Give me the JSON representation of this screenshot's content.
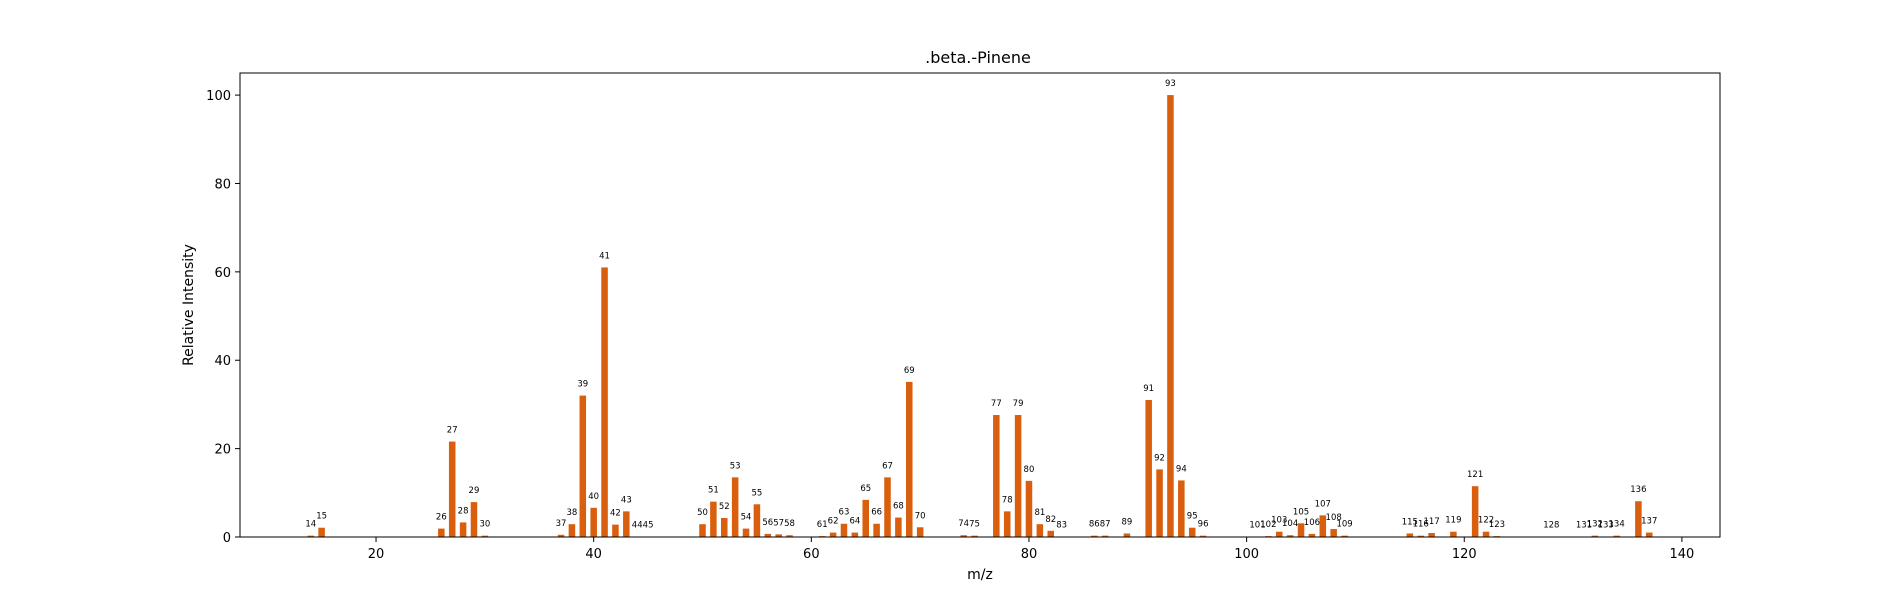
{
  "chart_data": {
    "type": "bar",
    "title": ".beta.-Pinene",
    "xlabel": "m/z",
    "ylabel": "Relative Intensity",
    "xlim": [
      7.5,
      143.5
    ],
    "ylim": [
      0,
      105
    ],
    "xticks": [
      20,
      40,
      60,
      80,
      100,
      120,
      140
    ],
    "yticks": [
      0,
      20,
      40,
      60,
      80,
      100
    ],
    "bar_color": "#d95f0e",
    "grid": false,
    "legend": "none",
    "series": [
      {
        "x": [
          14,
          15,
          26,
          27,
          28,
          29,
          30,
          37,
          38,
          39,
          40,
          41,
          42,
          43,
          44,
          45,
          50,
          51,
          52,
          53,
          54,
          55,
          56,
          57,
          58,
          61,
          62,
          63,
          64,
          65,
          66,
          67,
          68,
          69,
          70,
          74,
          75,
          77,
          78,
          79,
          80,
          81,
          82,
          83,
          86,
          87,
          89,
          91,
          92,
          93,
          94,
          95,
          96,
          101,
          102,
          103,
          104,
          105,
          106,
          107,
          108,
          109,
          115,
          116,
          117,
          119,
          121,
          122,
          123,
          128,
          131,
          132,
          133,
          134,
          136,
          137
        ],
        "values": [
          0.3,
          2.1,
          1.9,
          21.6,
          3.3,
          7.9,
          0.3,
          0.5,
          2.9,
          32.0,
          6.6,
          61.0,
          2.8,
          5.8,
          0.1,
          0.1,
          2.9,
          8.0,
          4.3,
          13.5,
          1.9,
          7.4,
          0.7,
          0.6,
          0.4,
          0.2,
          1.0,
          3.0,
          1.0,
          8.4,
          3.0,
          13.5,
          4.4,
          35.1,
          2.2,
          0.4,
          0.3,
          27.6,
          5.8,
          27.6,
          12.7,
          2.9,
          1.4,
          0.1,
          0.3,
          0.3,
          0.8,
          31.0,
          15.3,
          100,
          12.8,
          2.1,
          0.3,
          0.1,
          0.2,
          1.2,
          0.4,
          3.1,
          0.7,
          4.9,
          1.8,
          0.3,
          0.8,
          0.3,
          0.9,
          1.2,
          11.5,
          1.2,
          0.2,
          0.1,
          0.1,
          0.3,
          0.1,
          0.3,
          8.1,
          1.0
        ]
      }
    ]
  }
}
